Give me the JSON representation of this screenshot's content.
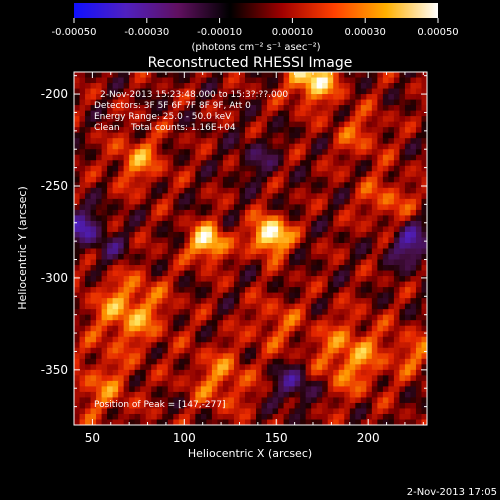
{
  "colorbar": {
    "ticks": [
      "-0.00050",
      "-0.00030",
      "-0.00010",
      "0.00010",
      "0.00030",
      "0.00050"
    ],
    "tick_values": [
      -0.0005,
      -0.0003,
      -0.0001,
      0.0001,
      0.0003,
      0.0005
    ],
    "range": [
      -0.0005,
      0.0005
    ],
    "unit_label": "(photons cm⁻² s⁻¹ asec⁻²)",
    "colors": [
      "#1010ff",
      "#5020c0",
      "#601060",
      "#000000",
      "#a00000",
      "#ff4000",
      "#ffb000",
      "#ffffff"
    ]
  },
  "chart_data": {
    "type": "heatmap",
    "title": "Reconstructed RHESSI Image",
    "xlabel": "Heliocentric X (arcsec)",
    "ylabel": "Heliocentric Y (arcsec)",
    "xlim": [
      40,
      232
    ],
    "ylim": [
      -380,
      -188
    ],
    "xticks": [
      50,
      100,
      150,
      200
    ],
    "yticks": [
      -200,
      -250,
      -300,
      -350
    ],
    "annotations": {
      "time": "2-Nov-2013 15:23:48.000 to 15:3?:??.000",
      "detectors": "Detectors: 3F 5F 6F 7F 8F 9F, Att 0",
      "energy": "Energy Range: 25.0 - 50.0 keV",
      "method": "Clean    Total counts: 1.16E+04",
      "peak": "Position of Peak = [147,-277]"
    },
    "peak_position": [
      147,
      -277
    ],
    "sources": [
      {
        "x": 147,
        "y": -277,
        "intensity": 1.0,
        "sigma": 7
      },
      {
        "x": 113,
        "y": -281,
        "intensity": 0.85,
        "sigma": 7
      },
      {
        "x": 170,
        "y": -192,
        "intensity": 0.8,
        "sigma": 9
      },
      {
        "x": 75,
        "y": -236,
        "intensity": 0.45,
        "sigma": 10
      },
      {
        "x": 70,
        "y": -318,
        "intensity": 0.55,
        "sigma": 14
      },
      {
        "x": 190,
        "y": -343,
        "intensity": 0.5,
        "sigma": 14
      },
      {
        "x": 210,
        "y": -258,
        "intensity": 0.35,
        "sigma": 10
      },
      {
        "x": 120,
        "y": -355,
        "intensity": 0.4,
        "sigma": 12
      },
      {
        "x": 55,
        "y": -360,
        "intensity": 0.35,
        "sigma": 12
      },
      {
        "x": 150,
        "y": -325,
        "intensity": 0.3,
        "sigma": 10
      },
      {
        "x": 195,
        "y": -222,
        "intensity": 0.3,
        "sigma": 10
      },
      {
        "x": 225,
        "y": -340,
        "intensity": 0.35,
        "sigma": 8
      }
    ],
    "negative_regions": [
      {
        "x": 45,
        "y": -272,
        "intensity": -0.6,
        "sigma": 7
      },
      {
        "x": 223,
        "y": -282,
        "intensity": -0.6,
        "sigma": 8
      },
      {
        "x": 160,
        "y": -358,
        "intensity": -0.5,
        "sigma": 8
      },
      {
        "x": 140,
        "y": -235,
        "intensity": -0.3,
        "sigma": 8
      },
      {
        "x": 60,
        "y": -285,
        "intensity": -0.3,
        "sigma": 7
      }
    ]
  },
  "timestamp": "2-Nov-2013 17:05"
}
